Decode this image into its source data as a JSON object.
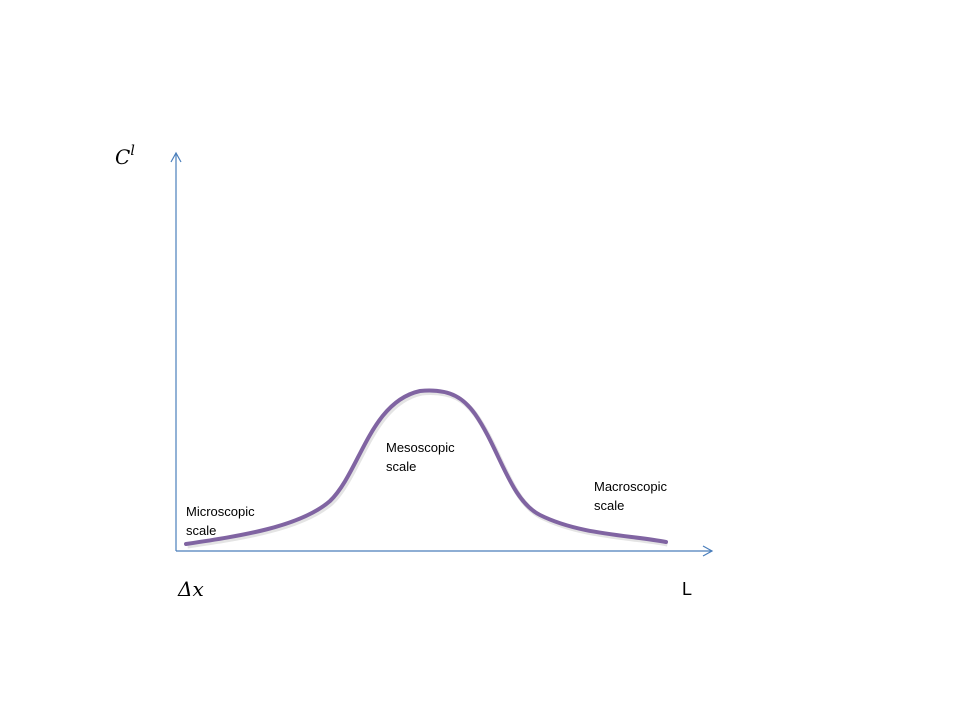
{
  "axes": {
    "y_label": {
      "base": "C",
      "superscript": "l"
    },
    "x_start_label": "Δx",
    "x_end_label": "L"
  },
  "regions": [
    {
      "lines": [
        "Microscopic",
        "scale"
      ]
    },
    {
      "lines": [
        "Mesoscopic",
        "scale"
      ]
    },
    {
      "lines": [
        "Macroscopic",
        "scale"
      ]
    }
  ]
}
